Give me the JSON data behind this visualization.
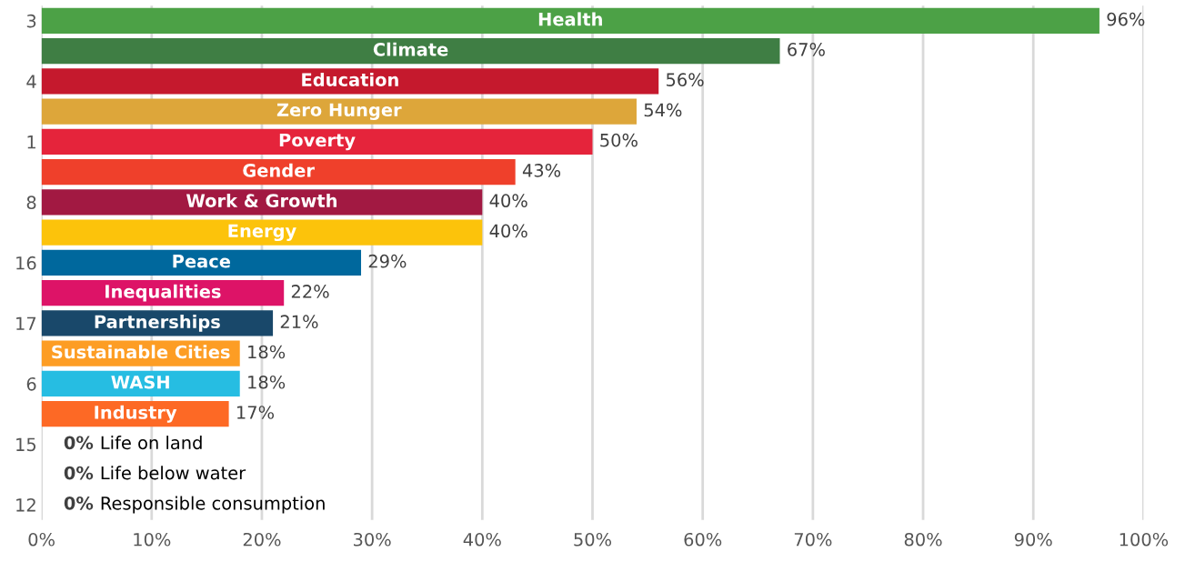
{
  "chart_data": {
    "type": "bar",
    "orientation": "horizontal",
    "categories": [
      "3",
      null,
      "4",
      null,
      "1",
      null,
      "8",
      null,
      "16",
      null,
      "17",
      null,
      "6",
      null,
      "15",
      null,
      "12"
    ],
    "values": [
      96,
      67,
      56,
      54,
      50,
      43,
      40,
      40,
      29,
      22,
      21,
      18,
      18,
      17,
      0,
      0,
      0
    ],
    "colors": [
      "#4ca146",
      "#3f7e44",
      "#c5192d",
      "#dda63a",
      "#e5243b",
      "#ef402b",
      "#a21942",
      "#fcc30b",
      "#00689d",
      "#dd1367",
      "#19486a",
      "#fd9d24",
      "#26bde2",
      "#fd6925",
      "#56c02b",
      "#0a97d9",
      "#bf8b2e"
    ],
    "value_labels": [
      "96%",
      "67%",
      "56%",
      "54%",
      "50%",
      "43%",
      "40%",
      "40%",
      "29%",
      "22%",
      "21%",
      "18%",
      "18%",
      "17%",
      "0%",
      "0%",
      "0%"
    ],
    "annotations": [
      "Health",
      "Climate",
      "Education",
      "Zero Hunger",
      "Poverty",
      "Gender",
      "Work & Growth",
      "Energy",
      "Peace",
      "Inequalities",
      "Partnerships",
      "Sustainable Cities",
      "WASH",
      "Industry",
      "Life on land",
      "Life below water",
      "Responsible consumption"
    ],
    "xlim": [
      0,
      100
    ],
    "xticks": [
      {
        "value": 0,
        "label": "0%"
      },
      {
        "value": 10,
        "label": "10%"
      },
      {
        "value": 20,
        "label": "20%"
      },
      {
        "value": 30,
        "label": "30%"
      },
      {
        "value": 40,
        "label": "40%"
      },
      {
        "value": 50,
        "label": "50%"
      },
      {
        "value": 60,
        "label": "60%"
      },
      {
        "value": 70,
        "label": "70%"
      },
      {
        "value": 80,
        "label": "80%"
      },
      {
        "value": 90,
        "label": "90%"
      },
      {
        "value": 100,
        "label": "100%"
      }
    ],
    "grid": "x",
    "legend": false
  }
}
